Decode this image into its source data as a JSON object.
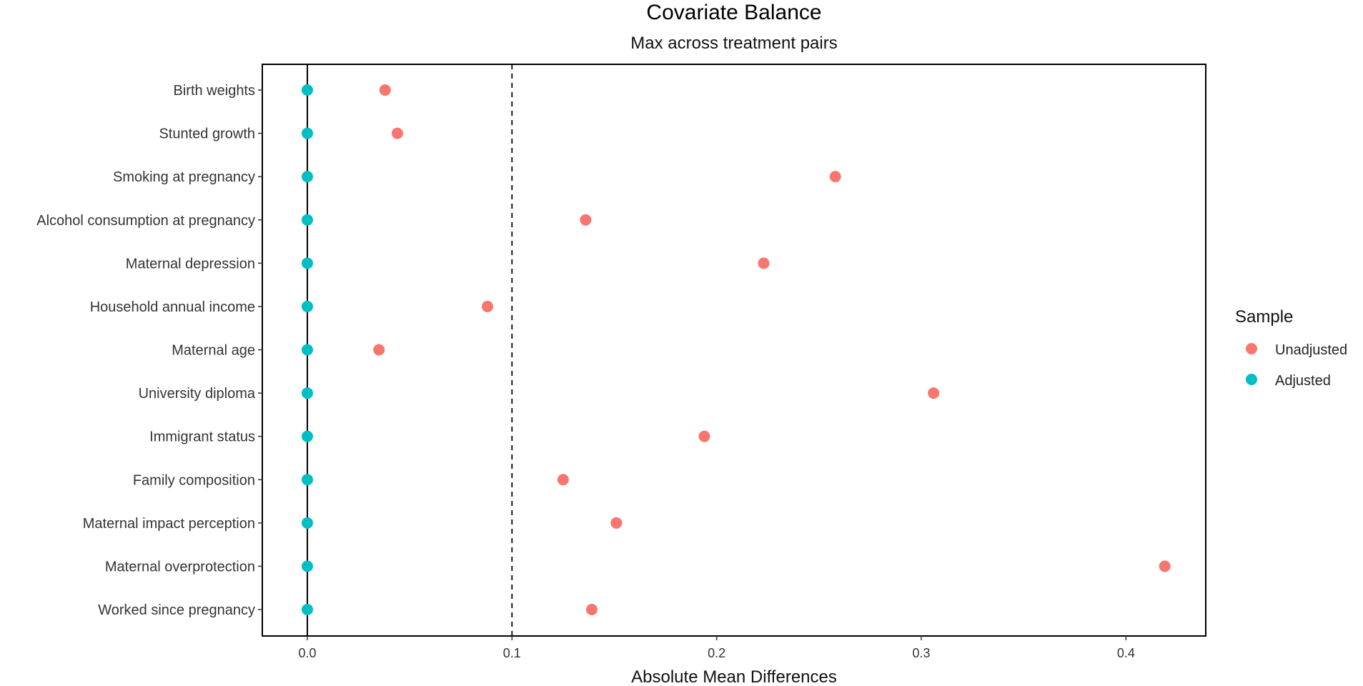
{
  "chart_data": {
    "type": "scatter",
    "title": "Covariate Balance",
    "subtitle": "Max across treatment pairs",
    "xlabel": "Absolute Mean Differences",
    "ylabel": "",
    "xlim": [
      -0.022,
      0.439
    ],
    "xticks": [
      "0.0",
      "0.1",
      "0.2",
      "0.3",
      "0.4"
    ],
    "xtick_values": [
      0.0,
      0.1,
      0.2,
      0.3,
      0.4
    ],
    "threshold": 0.1,
    "zero_line": 0.0,
    "grid": false,
    "legend_position": "right",
    "categories": [
      "Birth weights",
      "Stunted growth",
      "Smoking at pregnancy",
      "Alcohol consumption at pregnancy",
      "Maternal depression",
      "Household annual income",
      "Maternal age",
      "University diploma",
      "Immigrant status",
      "Family composition",
      "Maternal impact perception",
      "Maternal overprotection",
      "Worked since pregnancy"
    ],
    "series": [
      {
        "name": "Unadjusted",
        "color": "#F8766D",
        "values": [
          0.038,
          0.044,
          0.258,
          0.136,
          0.223,
          0.088,
          0.035,
          0.306,
          0.194,
          0.125,
          0.151,
          0.419,
          0.139
        ]
      },
      {
        "name": "Adjusted",
        "color": "#00BFC4",
        "values": [
          0.0,
          0.0,
          0.0,
          0.0,
          0.0,
          0.0,
          0.0,
          0.0,
          0.0,
          0.0,
          0.0,
          0.0,
          0.0
        ]
      }
    ],
    "legend": {
      "title": "Sample",
      "items": [
        "Unadjusted",
        "Adjusted"
      ]
    }
  }
}
